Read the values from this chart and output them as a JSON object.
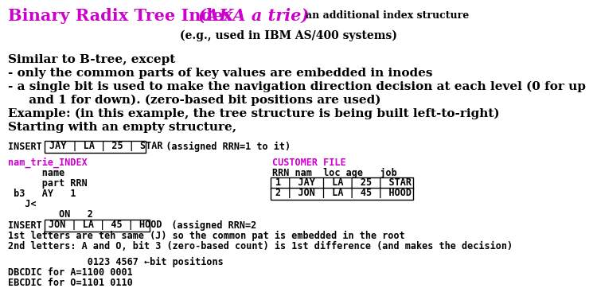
{
  "bg_color": "#ffffff",
  "title_part1": "Binary Radix Tree Index ",
  "title_part2": "(AKA a trie) ",
  "title_part3": "an additional index structure",
  "subtitle": "(e.g., used in IBM AS/400 systems)",
  "title_color": "#cc00cc",
  "purple_color": "#cc00cc",
  "body_lines": [
    "Similar to B-tree, except",
    "- only the common parts of key values are embedded in inodes",
    "- a single bit is used to make the navigation direction decision at each level (0 for up",
    "     and 1 for down). (zero-based bit positions are used)",
    "Example: (in this example, the tree structure is being built left-to-right)",
    "Starting with an empty structure,"
  ],
  "insert1_prefix": "INSERT  ",
  "insert1_box": "JAY | LA | 25 | STAR",
  "insert1_suffix": "   (assigned RRN=1 to it)",
  "trie_index_label": "nam_trie_INDEX",
  "trie_lines": [
    "      name",
    "      part RRN",
    " b3   AY   1",
    "   J<",
    "         ON   2"
  ],
  "customer_label": "CUSTOMER FILE",
  "customer_header": "RRN nam  loc age   job",
  "customer_row1_box": "1 | JAY | LA | 25 | STAR",
  "customer_row2_box": "2 | JON | LA | 45 | HOOD",
  "insert2_prefix": "INSERT  ",
  "insert2_box": "JON | LA | 45 | HOOD",
  "insert2_suffix": "   (assigned RRN=2",
  "insert2_lines": [
    "1st letters are teh same (J) so the common pat is embedded in the root",
    "2nd letters: A and O, bit 3 (zero-based count) is 1st difference (and makes the decision)"
  ],
  "bit_header": "              0123 4567 ←bit positions",
  "ebcdic_lines": [
    "DBCDIC for A=1100 0001",
    "EBCDIC for O=1101 0110"
  ]
}
